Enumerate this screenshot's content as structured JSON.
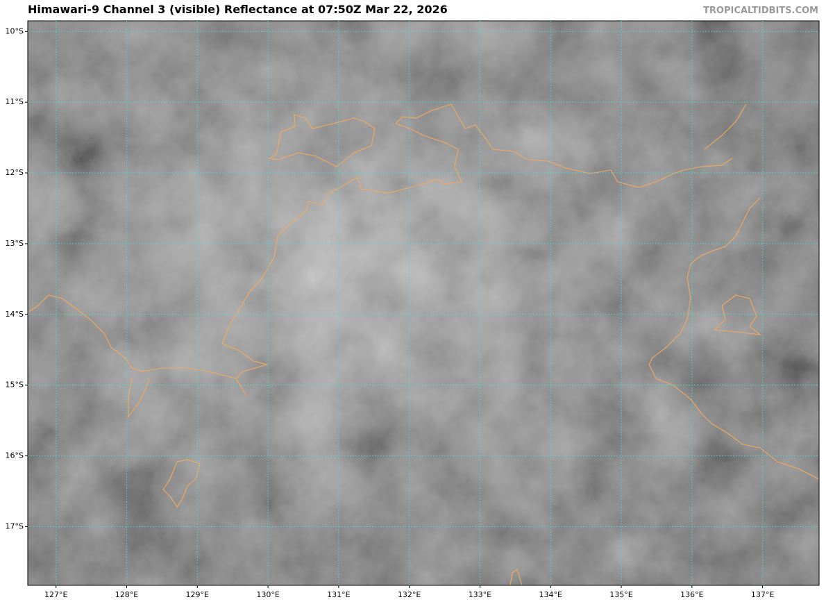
{
  "map": {
    "title": "Himawari-9 Channel 3 (visible) Reflectance at 07:50Z Mar 22, 2026",
    "source": "TROPICALTIDBITS.COM",
    "xlim": [
      126.6,
      137.8
    ],
    "ylim": [
      -17.83,
      -9.85
    ],
    "xticks": [
      {
        "value": 127,
        "label": "127°E"
      },
      {
        "value": 128,
        "label": "128°E"
      },
      {
        "value": 129,
        "label": "129°E"
      },
      {
        "value": 130,
        "label": "130°E"
      },
      {
        "value": 131,
        "label": "131°E"
      },
      {
        "value": 132,
        "label": "132°E"
      },
      {
        "value": 133,
        "label": "133°E"
      },
      {
        "value": 134,
        "label": "134°E"
      },
      {
        "value": 135,
        "label": "135°E"
      },
      {
        "value": 136,
        "label": "136°E"
      },
      {
        "value": 137,
        "label": "137°E"
      }
    ],
    "yticks": [
      {
        "value": -10,
        "label": "10°S"
      },
      {
        "value": -11,
        "label": "11°S"
      },
      {
        "value": -12,
        "label": "12°S"
      },
      {
        "value": -13,
        "label": "13°S"
      },
      {
        "value": -14,
        "label": "14°S"
      },
      {
        "value": -15,
        "label": "15°S"
      },
      {
        "value": -16,
        "label": "16°S"
      },
      {
        "value": -17,
        "label": "17°S"
      }
    ],
    "grid": true
  }
}
